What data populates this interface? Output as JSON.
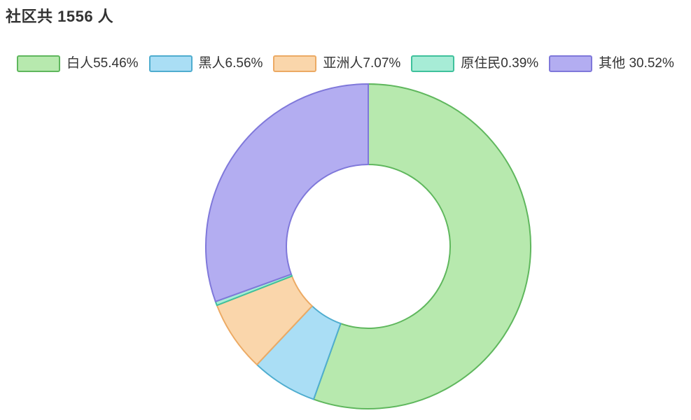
{
  "chart_data": {
    "type": "pie",
    "subtype": "donut",
    "title": "社区共 1556 人",
    "total_people": 1556,
    "start_angle_deg": 0,
    "direction": "clockwise",
    "legend_position": "top",
    "background": "#ffffff",
    "title_color": "#333333",
    "legend_text_color": "#333333",
    "series": [
      {
        "id": "white",
        "name": "白人",
        "value_pct": 55.46,
        "label": "白人55.46%",
        "fill": "#b7e9ae",
        "stroke": "#5fb75d"
      },
      {
        "id": "black",
        "name": "黑人",
        "value_pct": 6.56,
        "label": "黑人6.56%",
        "fill": "#aadef5",
        "stroke": "#4fadcf"
      },
      {
        "id": "asian",
        "name": "亚洲人",
        "value_pct": 7.07,
        "label": "亚洲人7.07%",
        "fill": "#fad6ab",
        "stroke": "#ecaa64"
      },
      {
        "id": "indigenous",
        "name": "原住民",
        "value_pct": 0.39,
        "label": "原住民0.39%",
        "fill": "#a7ecd6",
        "stroke": "#3fc19c"
      },
      {
        "id": "other",
        "name": "其他",
        "value_pct": 30.52,
        "label": "其他 30.52%",
        "fill": "#b3adf1",
        "stroke": "#7f78da"
      }
    ]
  }
}
